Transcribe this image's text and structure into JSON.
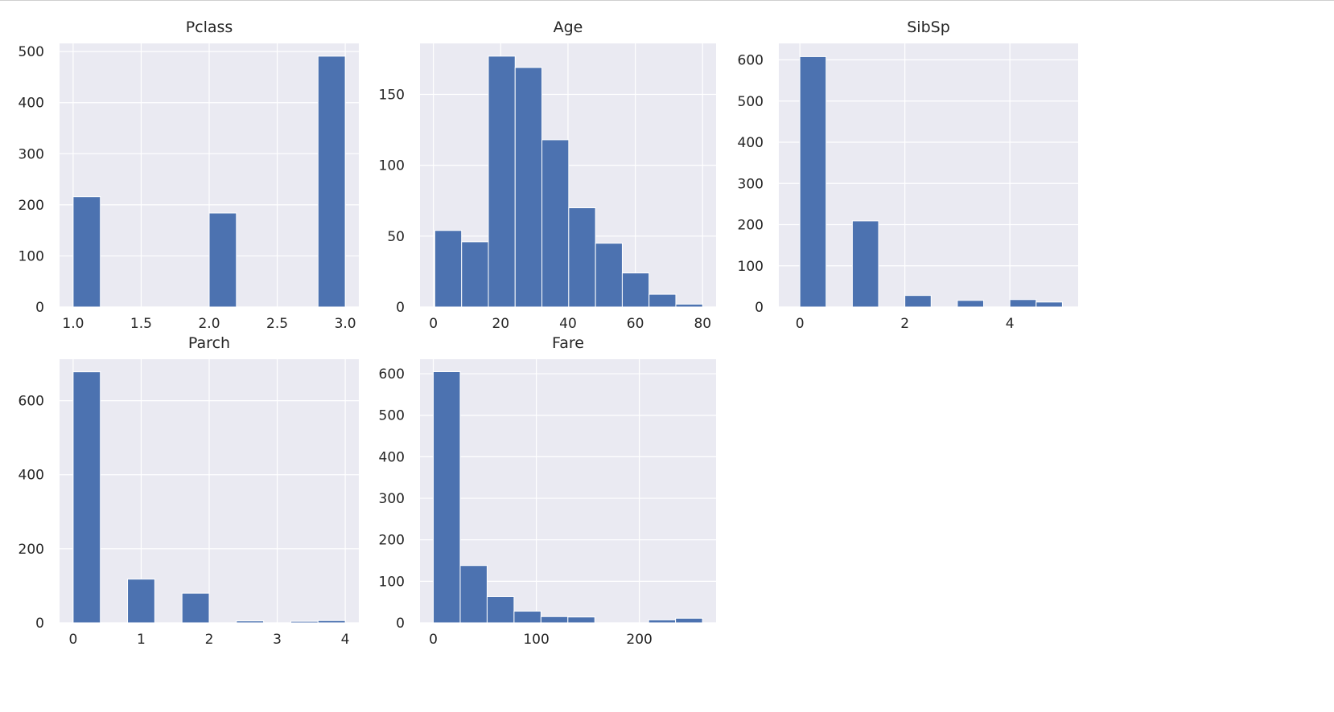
{
  "figure": {
    "facecolor": "#ffffff"
  },
  "style": {
    "axes_bg": "#eaeaf2",
    "grid": "#ffffff",
    "bar": "#4c72b0",
    "text": "#262626"
  },
  "chart_data": [
    {
      "type": "bar",
      "title": "Pclass",
      "xlim": [
        0.9,
        3.1
      ],
      "ylim": [
        0,
        516
      ],
      "xticks": [
        1.0,
        1.5,
        2.0,
        2.5,
        3.0
      ],
      "xtick_labels": [
        "1.0",
        "1.5",
        "2.0",
        "2.5",
        "3.0"
      ],
      "yticks": [
        0,
        100,
        200,
        300,
        400,
        500
      ],
      "ytick_labels": [
        "0",
        "100",
        "200",
        "300",
        "400",
        "500"
      ],
      "bin_edges": [
        1.0,
        1.2,
        1.4,
        1.6,
        1.8,
        2.0,
        2.2,
        2.4,
        2.6,
        2.8,
        3.0
      ],
      "values": [
        216,
        0,
        0,
        0,
        0,
        184,
        0,
        0,
        0,
        491
      ],
      "grid": true
    },
    {
      "type": "bar",
      "title": "Age",
      "xlim": [
        -3.98,
        84.0
      ],
      "ylim": [
        0,
        186
      ],
      "xticks": [
        0,
        20,
        40,
        60,
        80
      ],
      "xtick_labels": [
        "0",
        "20",
        "40",
        "60",
        "80"
      ],
      "yticks": [
        0,
        50,
        100,
        150
      ],
      "ytick_labels": [
        "0",
        "50",
        "100",
        "150"
      ],
      "bin_edges": [
        0.42,
        8.38,
        16.34,
        24.29,
        32.25,
        40.21,
        48.17,
        56.13,
        64.08,
        72.04,
        80.0
      ],
      "values": [
        54,
        46,
        177,
        169,
        118,
        70,
        45,
        24,
        9,
        2
      ],
      "grid": true
    },
    {
      "type": "bar",
      "title": "SibSp",
      "xlim": [
        -0.4,
        5.3
      ],
      "ylim": [
        0,
        640
      ],
      "xticks": [
        0,
        2,
        4
      ],
      "xtick_labels": [
        "0",
        "2",
        "4"
      ],
      "yticks": [
        0,
        100,
        200,
        300,
        400,
        500,
        600
      ],
      "ytick_labels": [
        "0",
        "100",
        "200",
        "300",
        "400",
        "500",
        "600"
      ],
      "bin_edges": [
        0.0,
        0.5,
        1.0,
        1.5,
        2.0,
        2.5,
        3.0,
        3.5,
        4.0,
        4.5,
        5.0
      ],
      "values": [
        608,
        0,
        209,
        0,
        28,
        0,
        16,
        0,
        18,
        12
      ],
      "grid": true
    },
    {
      "type": "bar",
      "title": "Parch",
      "xlim": [
        -0.2,
        4.2
      ],
      "ylim": [
        0,
        712
      ],
      "xticks": [
        0,
        1,
        2,
        3,
        4
      ],
      "xtick_labels": [
        "0",
        "1",
        "2",
        "3",
        "4"
      ],
      "yticks": [
        0,
        200,
        400,
        600
      ],
      "ytick_labels": [
        "0",
        "200",
        "400",
        "600"
      ],
      "bin_edges": [
        0.0,
        0.4,
        0.8,
        1.2,
        1.6,
        2.0,
        2.4,
        2.8,
        3.2,
        3.6,
        4.0
      ],
      "values": [
        678,
        0,
        118,
        0,
        80,
        0,
        5,
        0,
        4,
        6
      ],
      "grid": true
    },
    {
      "type": "bar",
      "title": "Fare",
      "xlim": [
        -12.9,
        274.5
      ],
      "ylim": [
        0,
        635
      ],
      "xticks": [
        0,
        100,
        200
      ],
      "xtick_labels": [
        "0",
        "100",
        "200"
      ],
      "yticks": [
        0,
        100,
        200,
        300,
        400,
        500,
        600
      ],
      "ytick_labels": [
        "0",
        "100",
        "200",
        "300",
        "400",
        "500",
        "600"
      ],
      "bin_edges": [
        0.0,
        26.13,
        52.26,
        78.39,
        104.52,
        130.65,
        156.78,
        182.91,
        209.04,
        235.17,
        261.3
      ],
      "values": [
        605,
        138,
        63,
        28,
        15,
        14,
        0,
        0,
        7,
        11
      ],
      "grid": true
    }
  ]
}
